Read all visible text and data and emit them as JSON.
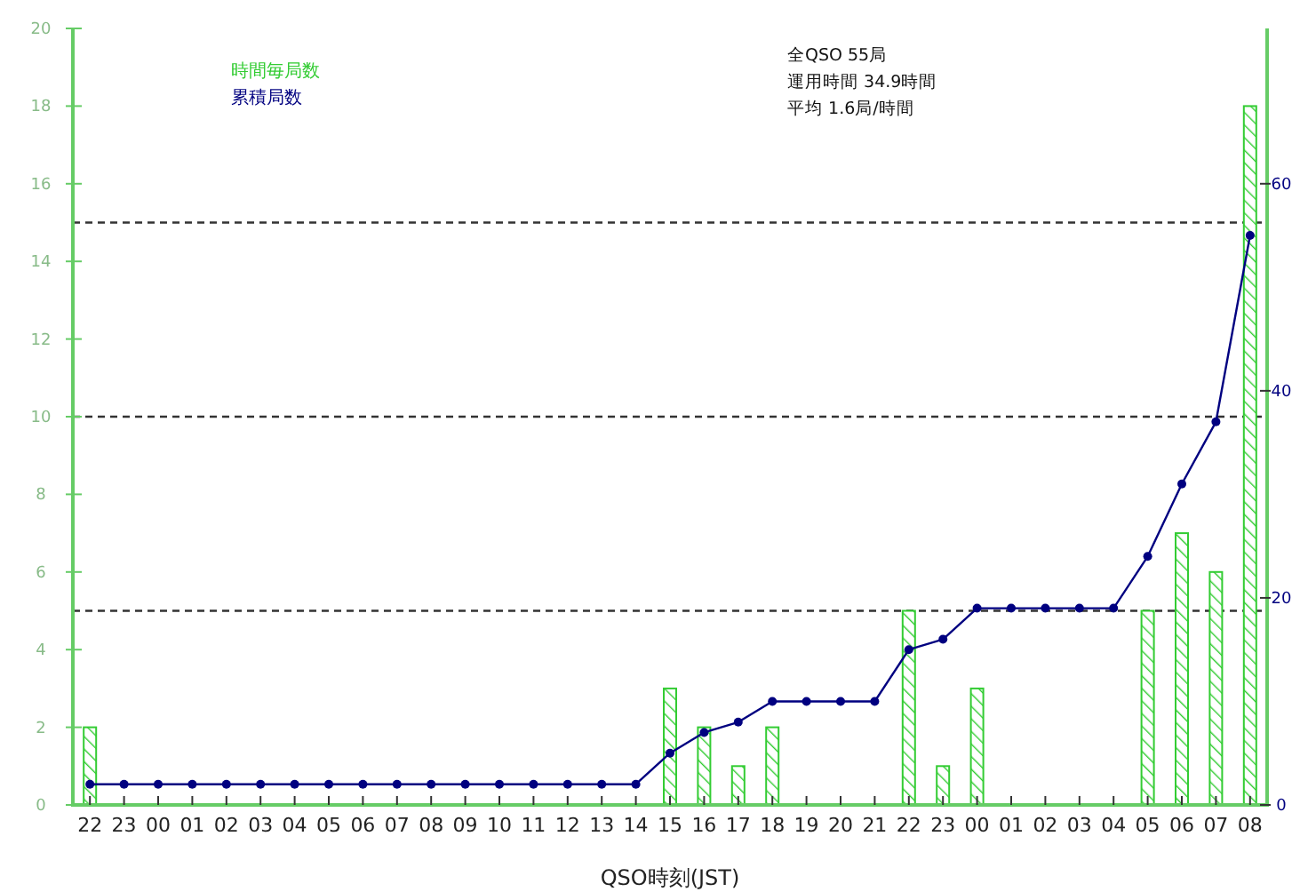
{
  "chart_data": {
    "type": "bar",
    "xlabel": "QSO時刻(JST)",
    "categories": [
      "22",
      "23",
      "00",
      "01",
      "02",
      "03",
      "04",
      "05",
      "06",
      "07",
      "08",
      "09",
      "10",
      "11",
      "12",
      "13",
      "14",
      "15",
      "16",
      "17",
      "18",
      "19",
      "20",
      "21",
      "22",
      "23",
      "00",
      "01",
      "02",
      "03",
      "04",
      "05",
      "06",
      "07",
      "08"
    ],
    "series": [
      {
        "name": "時間毎局数",
        "color": "#33cc33",
        "values": [
          2,
          0,
          0,
          0,
          0,
          0,
          0,
          0,
          0,
          0,
          0,
          0,
          0,
          0,
          0,
          0,
          0,
          3,
          2,
          1,
          2,
          0,
          0,
          0,
          5,
          1,
          3,
          0,
          0,
          0,
          0,
          5,
          7,
          6,
          18
        ]
      },
      {
        "name": "累積局数",
        "type": "line",
        "axis": "y2",
        "color": "#000080",
        "values": [
          2,
          2,
          2,
          2,
          2,
          2,
          2,
          2,
          2,
          2,
          2,
          2,
          2,
          2,
          2,
          2,
          2,
          5,
          7,
          8,
          10,
          10,
          10,
          10,
          15,
          16,
          19,
          19,
          19,
          19,
          19,
          24,
          31,
          37,
          55
        ]
      }
    ],
    "ylim": [
      0,
      20
    ],
    "yticks": [
      0,
      2,
      4,
      6,
      8,
      10,
      12,
      14,
      16,
      18,
      20
    ],
    "y2lim": [
      0,
      75
    ],
    "y2ticks": [
      0,
      20,
      40,
      60
    ],
    "ref_lines": [
      {
        "axis": "y",
        "value": 5,
        "color": "#333333",
        "line_style": "dashed"
      },
      {
        "axis": "y",
        "value": 10,
        "color": "#333333",
        "line_style": "dashed"
      },
      {
        "axis": "y",
        "value": 15,
        "color": "#333333",
        "line_style": "dashed"
      }
    ],
    "annotations": [
      "全QSO 55局",
      "運用時間 34.9時間",
      "平均 1.6局/時間"
    ],
    "legend": "top left",
    "marker": "circle"
  }
}
